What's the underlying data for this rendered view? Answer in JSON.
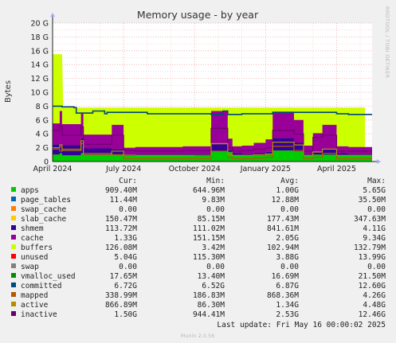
{
  "window": {
    "title": "Memory usage - by year"
  },
  "side_label": "RRDTOOL / TOBI OETIKER",
  "footer": {
    "last_update": "Last update: Fri May 16 00:00:02 2025",
    "munin": "Munin 2.0.56"
  },
  "legend": {
    "headers": {
      "cur": "Cur:",
      "min": "Min:",
      "avg": "Avg:",
      "max": "Max:"
    },
    "rows": [
      {
        "name": "apps",
        "color": "#00CC00",
        "cur": "909.40M",
        "min": "644.96M",
        "avg": "1.00G",
        "max": "5.65G"
      },
      {
        "name": "page_tables",
        "color": "#0066B3",
        "cur": "11.44M",
        "min": "9.83M",
        "avg": "12.88M",
        "max": "35.50M"
      },
      {
        "name": "swap_cache",
        "color": "#FF8000",
        "cur": "0.00",
        "min": "0.00",
        "avg": "0.00",
        "max": "0.00"
      },
      {
        "name": "slab_cache",
        "color": "#FFCC00",
        "cur": "150.47M",
        "min": "85.15M",
        "avg": "177.43M",
        "max": "347.63M"
      },
      {
        "name": "shmem",
        "color": "#330099",
        "cur": "113.72M",
        "min": "111.02M",
        "avg": "841.61M",
        "max": "4.11G"
      },
      {
        "name": "cache",
        "color": "#990099",
        "cur": "1.33G",
        "min": "151.15M",
        "avg": "2.05G",
        "max": "9.34G"
      },
      {
        "name": "buffers",
        "color": "#CCFF00",
        "cur": "126.08M",
        "min": "3.42M",
        "avg": "102.94M",
        "max": "132.79M"
      },
      {
        "name": "unused",
        "color": "#FF0000",
        "cur": "5.04G",
        "min": "115.30M",
        "avg": "3.88G",
        "max": "13.99G"
      },
      {
        "name": "swap",
        "color": "#808080",
        "cur": "0.00",
        "min": "0.00",
        "avg": "0.00",
        "max": "0.00"
      },
      {
        "name": "vmalloc_used",
        "color": "#008F00",
        "cur": "17.65M",
        "min": "13.40M",
        "avg": "16.69M",
        "max": "21.50M"
      },
      {
        "name": "committed",
        "color": "#00487D",
        "cur": "6.72G",
        "min": "6.52G",
        "avg": "6.87G",
        "max": "12.60G"
      },
      {
        "name": "mapped",
        "color": "#B35A00",
        "cur": "338.99M",
        "min": "186.83M",
        "avg": "868.36M",
        "max": "4.26G"
      },
      {
        "name": "active",
        "color": "#B38F00",
        "cur": "866.89M",
        "min": "86.30M",
        "avg": "1.34G",
        "max": "4.48G"
      },
      {
        "name": "inactive",
        "color": "#6B006B",
        "cur": "1.50G",
        "min": "944.41M",
        "avg": "2.53G",
        "max": "12.46G"
      }
    ]
  },
  "chart_data": {
    "type": "area",
    "title": "Memory usage - by year",
    "ylabel": "Bytes",
    "ylim": [
      0,
      20
    ],
    "y_unit": "G",
    "y_ticks": [
      "0",
      "2 G",
      "4 G",
      "6 G",
      "8 G",
      "10 G",
      "12 G",
      "14 G",
      "16 G",
      "18 G",
      "20 G"
    ],
    "x_ticks": [
      "April 2024",
      "July 2024",
      "October 2024",
      "January 2025",
      "April 2025"
    ],
    "x_tick_months": [
      0,
      3,
      6,
      9,
      12
    ],
    "x_range_months": [
      0,
      13.5
    ],
    "grid": true,
    "stacked_series": [
      {
        "name": "apps",
        "color": "#00CC00",
        "x": [
          0,
          0.3,
          0.4,
          1.2,
          1.3,
          2.5,
          3.0,
          3.5,
          5.5,
          6.0,
          6.7,
          7.4,
          7.6,
          8.0,
          8.5,
          9.0,
          9.3,
          10.2,
          10.6,
          11.0,
          11.4,
          12.0,
          12.5,
          13.2
        ],
        "values": [
          1.0,
          1.2,
          0.9,
          1.2,
          0.9,
          1.0,
          0.8,
          0.9,
          0.9,
          0.8,
          1.5,
          1.4,
          0.9,
          0.9,
          0.9,
          1.0,
          1.6,
          1.5,
          0.9,
          1.0,
          1.0,
          0.9,
          0.9,
          0.9
        ]
      },
      {
        "name": "shmem",
        "color": "#330099",
        "x": [
          0,
          0.3,
          0.4,
          1.2,
          1.3,
          2.5,
          3.0,
          3.5,
          5.5,
          6.0,
          6.7,
          7.4,
          7.6,
          8.0,
          8.5,
          9.0,
          9.3,
          10.2,
          10.6,
          11.0,
          11.4,
          12.0,
          12.5,
          13.2
        ],
        "values": [
          1.5,
          0.9,
          1.5,
          2.2,
          1.0,
          0.8,
          0.2,
          0.2,
          0.2,
          0.3,
          1.0,
          0.3,
          0.3,
          0.2,
          0.3,
          0.4,
          1.8,
          1.2,
          0.2,
          0.3,
          0.8,
          0.3,
          0.2,
          0.2
        ]
      },
      {
        "name": "cache",
        "color": "#990099",
        "x": [
          0,
          0.3,
          0.4,
          1.2,
          1.3,
          2.5,
          3.0,
          3.5,
          5.5,
          6.0,
          6.7,
          7.4,
          7.6,
          8.0,
          8.5,
          9.0,
          9.3,
          10.2,
          10.6,
          11.0,
          11.4,
          12.0,
          12.5,
          13.2
        ],
        "values": [
          3.0,
          5.2,
          3.0,
          3.6,
          2.0,
          3.5,
          1.0,
          1.0,
          1.1,
          1.1,
          4.8,
          1.6,
          1.0,
          1.2,
          1.5,
          1.8,
          3.8,
          3.3,
          1.2,
          2.8,
          3.5,
          1.0,
          1.0,
          1.0
        ]
      },
      {
        "name": "buffers",
        "color": "#CCFF00",
        "x": [
          0,
          0.3,
          0.4,
          1.2,
          1.3,
          2.5,
          3.0,
          3.5,
          5.5,
          6.0,
          6.7,
          7.4,
          7.6,
          8.0,
          8.5,
          9.0,
          9.3,
          10.2,
          10.6,
          11.0,
          11.4,
          12.0,
          12.5,
          13.2
        ],
        "values": [
          0.1,
          0.1,
          0.1,
          0.1,
          0.1,
          0.1,
          0.1,
          0.1,
          0.1,
          0.1,
          0.1,
          0.1,
          0.1,
          0.1,
          0.1,
          0.1,
          0.1,
          0.1,
          0.1,
          0.1,
          0.1,
          0.1,
          0.1,
          0.1
        ]
      }
    ],
    "total_line": {
      "name": "total",
      "color": "#CCFF00",
      "x": [
        0,
        0.4,
        0.45,
        13.2
      ],
      "values": [
        15.5,
        15.5,
        7.8,
        7.8
      ]
    },
    "line_series": [
      {
        "name": "committed",
        "color": "#00487D",
        "x": [
          0,
          0.3,
          0.4,
          0.9,
          1.0,
          1.6,
          1.7,
          2.2,
          2.3,
          4.0,
          6.7,
          7.2,
          7.4,
          7.6,
          8.0,
          9.3,
          10.0,
          12.0,
          12.5,
          13.2
        ],
        "values": [
          8.0,
          8.0,
          7.9,
          7.8,
          7.0,
          7.0,
          7.3,
          6.9,
          7.1,
          6.9,
          6.8,
          7.3,
          6.8,
          6.8,
          6.9,
          7.1,
          7.1,
          6.9,
          6.8,
          6.8
        ]
      },
      {
        "name": "inactive",
        "color": "#6B006B",
        "x": [
          0,
          0.3,
          0.4,
          1.2,
          1.3,
          2.5,
          3.0,
          3.5,
          5.5,
          6.0,
          6.7,
          7.4,
          7.6,
          8.0,
          8.5,
          9.0,
          9.3,
          10.2,
          10.6,
          11.0,
          11.4,
          12.0,
          12.5,
          13.2
        ],
        "values": [
          4.5,
          5.2,
          3.8,
          5.0,
          2.5,
          3.8,
          1.6,
          1.5,
          1.6,
          1.6,
          4.8,
          2.0,
          1.5,
          1.6,
          1.8,
          2.0,
          4.5,
          4.0,
          1.5,
          3.5,
          3.8,
          1.5,
          1.5,
          1.5
        ]
      },
      {
        "name": "mapped",
        "color": "#B35A00",
        "x": [
          0,
          0.3,
          0.4,
          1.2,
          1.3,
          2.5,
          3.0,
          3.5,
          5.5,
          6.0,
          6.7,
          7.4,
          7.6,
          8.0,
          8.5,
          9.0,
          9.3,
          10.2,
          10.6,
          11.0,
          11.4,
          12.0,
          12.5,
          13.2
        ],
        "values": [
          1.8,
          1.5,
          1.8,
          2.6,
          1.2,
          1.0,
          0.4,
          0.4,
          0.4,
          0.4,
          1.5,
          0.6,
          0.4,
          0.4,
          0.5,
          0.6,
          2.2,
          1.6,
          0.4,
          0.6,
          1.2,
          0.4,
          0.4,
          0.4
        ]
      },
      {
        "name": "active",
        "color": "#B38F00",
        "x": [
          0,
          0.3,
          0.4,
          1.2,
          1.3,
          2.5,
          3.0,
          3.5,
          5.5,
          6.0,
          6.7,
          7.4,
          7.6,
          8.0,
          8.5,
          9.0,
          9.3,
          10.2,
          10.6,
          11.0,
          11.4,
          12.0,
          12.5,
          13.2
        ],
        "values": [
          2.0,
          2.4,
          1.6,
          3.0,
          1.0,
          1.5,
          0.9,
          0.9,
          0.9,
          0.9,
          2.6,
          1.0,
          0.9,
          0.9,
          1.0,
          1.1,
          2.8,
          2.4,
          0.9,
          1.4,
          1.8,
          0.9,
          0.9,
          0.9
        ]
      }
    ]
  }
}
